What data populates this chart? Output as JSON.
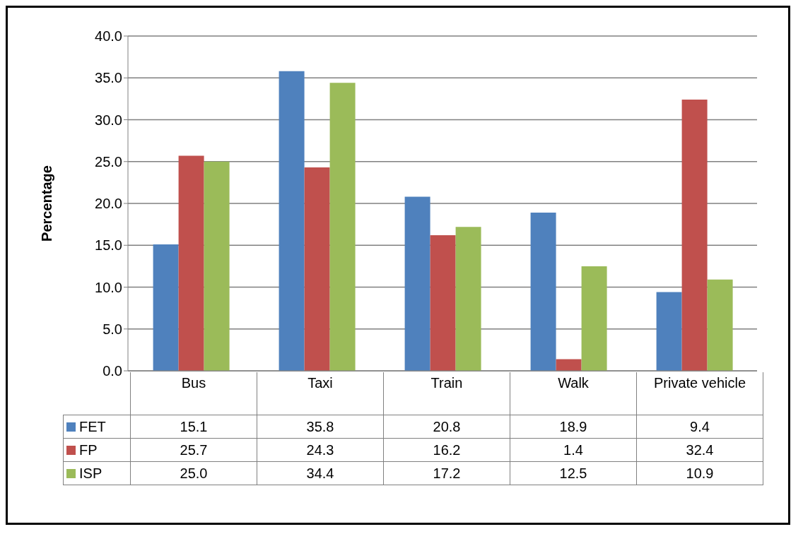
{
  "chart_data": {
    "type": "bar",
    "ylabel": "Percentage",
    "categories": [
      "Bus",
      "Taxi",
      "Train",
      "Walk",
      "Private vehicle"
    ],
    "series": [
      {
        "name": "FET",
        "color": "#4f81bd",
        "values": [
          15.1,
          35.8,
          20.8,
          18.9,
          9.4
        ],
        "value_labels": [
          "15.1",
          "35.8",
          "20.8",
          "18.9",
          "9.4"
        ]
      },
      {
        "name": "FP",
        "color": "#c0504d",
        "values": [
          25.7,
          24.3,
          16.2,
          1.4,
          32.4
        ],
        "value_labels": [
          "25.7",
          "24.3",
          "16.2",
          "1.4",
          "32.4"
        ]
      },
      {
        "name": "ISP",
        "color": "#9bbb59",
        "values": [
          25.0,
          34.4,
          17.2,
          12.5,
          10.9
        ],
        "value_labels": [
          "25.0",
          "34.4",
          "17.2",
          "12.5",
          "10.9"
        ]
      }
    ],
    "ylim": [
      0,
      40
    ],
    "yticks": [
      {
        "value": 0,
        "label": "0.0"
      },
      {
        "value": 5,
        "label": "5.0"
      },
      {
        "value": 10,
        "label": "10.0"
      },
      {
        "value": 15,
        "label": "15.0"
      },
      {
        "value": 20,
        "label": "20.0"
      },
      {
        "value": 25,
        "label": "25.0"
      },
      {
        "value": 30,
        "label": "30.0"
      },
      {
        "value": 35,
        "label": "35.0"
      },
      {
        "value": 40,
        "label": "40.0"
      }
    ],
    "grid": "y",
    "legend": "bottom"
  }
}
